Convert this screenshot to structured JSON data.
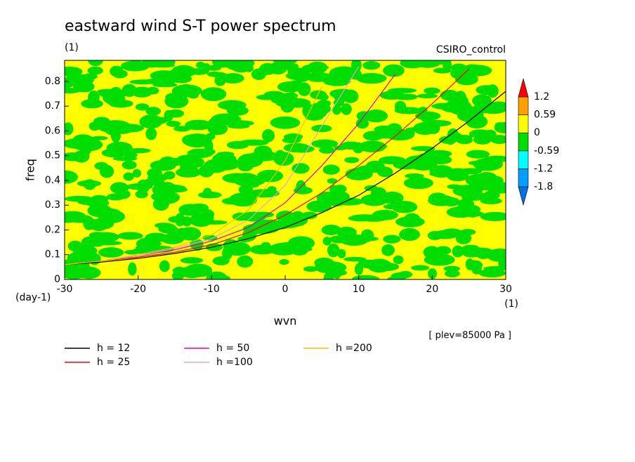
{
  "chart_data": {
    "type": "contour-lines",
    "title": "eastward wind S-T power spectrum",
    "subtitle": "(1)",
    "model": "CSIRO_control",
    "xlabel": "wvn",
    "x_unit": "(1)",
    "ylabel": "freq",
    "y_unit": "(day-1)",
    "annotation": "[ plev=85000 Pa ]",
    "xlim": [
      -30,
      30
    ],
    "xticks": [
      -30,
      -20,
      -10,
      0,
      10,
      20,
      30
    ],
    "ylim": [
      0,
      0.885
    ],
    "yticks": [
      0.0,
      0.1,
      0.2,
      0.3,
      0.4,
      0.5,
      0.6,
      0.7,
      0.8
    ],
    "x": [
      -30,
      -25,
      -20,
      -15,
      -10,
      -5,
      0,
      5,
      10,
      15,
      20,
      25,
      30
    ],
    "series": [
      {
        "name": "h = 12",
        "color": "#000000",
        "values": [
          0.06,
          0.07,
          0.085,
          0.105,
          0.13,
          0.165,
          0.21,
          0.27,
          0.34,
          0.43,
          0.53,
          0.64,
          0.76
        ]
      },
      {
        "name": "h = 25",
        "color": "#ff0000",
        "values": [
          0.06,
          0.075,
          0.09,
          0.11,
          0.14,
          0.19,
          0.26,
          0.35,
          0.46,
          0.58,
          0.71,
          0.85,
          null
        ]
      },
      {
        "name": "h = 50",
        "color": "#e000c0",
        "values": [
          0.06,
          0.075,
          0.095,
          0.12,
          0.155,
          0.21,
          0.31,
          0.46,
          0.63,
          0.83,
          null,
          null,
          null
        ]
      },
      {
        "name": "h =100",
        "color": "#e0a0e0",
        "values": [
          0.06,
          0.075,
          0.095,
          0.125,
          0.165,
          0.24,
          0.38,
          0.62,
          0.86,
          null,
          null,
          null,
          null
        ]
      },
      {
        "name": "h =200",
        "color": "#f0c000",
        "values": [
          0.06,
          0.075,
          0.1,
          0.13,
          0.18,
          0.28,
          0.48,
          0.78,
          null,
          null,
          null,
          null,
          null
        ]
      }
    ],
    "colorbar": {
      "levels": [
        -1.8,
        -1.2,
        -0.59,
        0,
        0.59,
        1.2
      ],
      "colors": [
        "#0070e8",
        "#00a0ff",
        "#00ffff",
        "#00dd00",
        "#ffff00",
        "#ffa000",
        "#ff0000"
      ]
    }
  }
}
